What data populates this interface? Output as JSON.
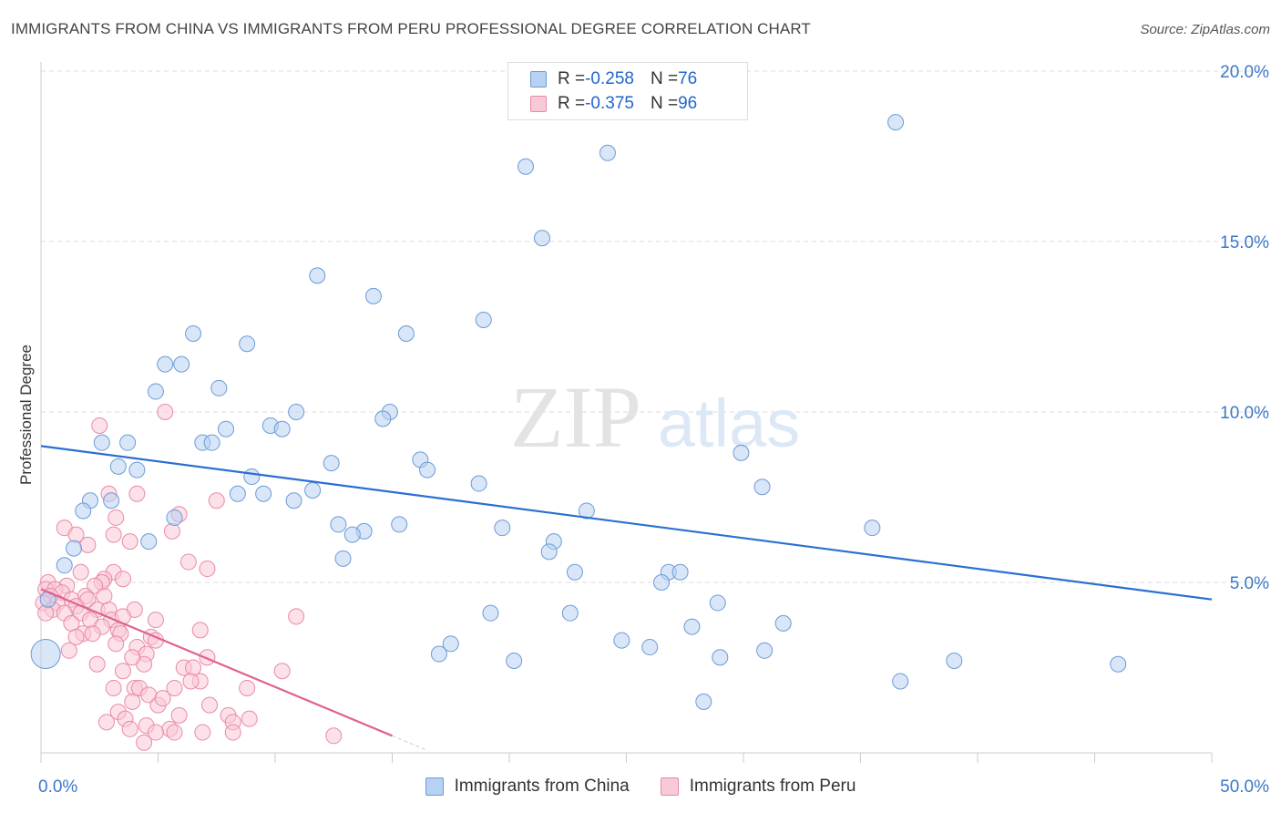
{
  "header": {
    "title": "IMMIGRANTS FROM CHINA VS IMMIGRANTS FROM PERU PROFESSIONAL DEGREE CORRELATION CHART",
    "source": "Source: ZipAtlas.com"
  },
  "watermark": {
    "zip": "ZIP",
    "atlas": "atlas"
  },
  "stats": [
    {
      "r_label": "R = ",
      "r_value": "-0.258",
      "n_label": "N = ",
      "n_value": "76"
    },
    {
      "r_label": "R = ",
      "r_value": "-0.375",
      "n_label": "N = ",
      "n_value": "96"
    }
  ],
  "legend": [
    {
      "label": "Immigrants from China"
    },
    {
      "label": "Immigrants from Peru"
    }
  ],
  "colors": {
    "china_fill": "#b8d1f3",
    "china_stroke": "#6b9bd8",
    "china_line": "#2a6fd1",
    "peru_fill": "#f9c9d6",
    "peru_stroke": "#e98aa6",
    "peru_line": "#e0628f",
    "tick_text": "#3b78c8"
  },
  "chart_data": {
    "type": "scatter",
    "title": "IMMIGRANTS FROM CHINA VS IMMIGRANTS FROM PERU PROFESSIONAL DEGREE CORRELATION CHART",
    "xlabel": "",
    "ylabel": "Professional Degree",
    "xlim": [
      0,
      50
    ],
    "ylim": [
      0,
      20
    ],
    "x_tick_labels": [
      "0.0%",
      "50.0%"
    ],
    "y_ticks": [
      5,
      10,
      15,
      20
    ],
    "y_tick_labels": [
      "5.0%",
      "10.0%",
      "15.0%",
      "20.0%"
    ],
    "grid": true,
    "legend_position": "bottom",
    "series": [
      {
        "name": "Immigrants from China",
        "r": -0.258,
        "n": 76,
        "trend": {
          "x": [
            0,
            50
          ],
          "y": [
            9.0,
            4.5
          ]
        },
        "points": [
          {
            "x": 36.5,
            "y": 18.5
          },
          {
            "x": 24.2,
            "y": 17.6
          },
          {
            "x": 20.7,
            "y": 17.2
          },
          {
            "x": 21.4,
            "y": 15.1
          },
          {
            "x": 11.8,
            "y": 14.0
          },
          {
            "x": 14.2,
            "y": 13.4
          },
          {
            "x": 15.6,
            "y": 12.3
          },
          {
            "x": 18.9,
            "y": 12.7
          },
          {
            "x": 6.5,
            "y": 12.3
          },
          {
            "x": 8.8,
            "y": 12.0
          },
          {
            "x": 5.3,
            "y": 11.4
          },
          {
            "x": 6.0,
            "y": 11.4
          },
          {
            "x": 4.9,
            "y": 10.6
          },
          {
            "x": 7.6,
            "y": 10.7
          },
          {
            "x": 10.9,
            "y": 10.0
          },
          {
            "x": 14.9,
            "y": 10.0
          },
          {
            "x": 14.6,
            "y": 9.8
          },
          {
            "x": 9.8,
            "y": 9.6
          },
          {
            "x": 10.3,
            "y": 9.5
          },
          {
            "x": 7.9,
            "y": 9.5
          },
          {
            "x": 2.6,
            "y": 9.1
          },
          {
            "x": 3.7,
            "y": 9.1
          },
          {
            "x": 6.9,
            "y": 9.1
          },
          {
            "x": 7.3,
            "y": 9.1
          },
          {
            "x": 12.4,
            "y": 8.5
          },
          {
            "x": 16.2,
            "y": 8.6
          },
          {
            "x": 16.5,
            "y": 8.3
          },
          {
            "x": 29.9,
            "y": 8.8
          },
          {
            "x": 3.3,
            "y": 8.4
          },
          {
            "x": 4.1,
            "y": 8.3
          },
          {
            "x": 9.0,
            "y": 8.1
          },
          {
            "x": 18.7,
            "y": 7.9
          },
          {
            "x": 30.8,
            "y": 7.8
          },
          {
            "x": 11.6,
            "y": 7.7
          },
          {
            "x": 8.4,
            "y": 7.6
          },
          {
            "x": 9.5,
            "y": 7.6
          },
          {
            "x": 2.1,
            "y": 7.4
          },
          {
            "x": 3.0,
            "y": 7.4
          },
          {
            "x": 10.8,
            "y": 7.4
          },
          {
            "x": 1.8,
            "y": 7.1
          },
          {
            "x": 23.3,
            "y": 7.1
          },
          {
            "x": 5.7,
            "y": 6.9
          },
          {
            "x": 12.7,
            "y": 6.7
          },
          {
            "x": 15.3,
            "y": 6.7
          },
          {
            "x": 19.7,
            "y": 6.6
          },
          {
            "x": 35.5,
            "y": 6.6
          },
          {
            "x": 13.8,
            "y": 6.5
          },
          {
            "x": 13.3,
            "y": 6.4
          },
          {
            "x": 4.6,
            "y": 6.2
          },
          {
            "x": 21.9,
            "y": 6.2
          },
          {
            "x": 1.4,
            "y": 6.0
          },
          {
            "x": 21.7,
            "y": 5.9
          },
          {
            "x": 12.9,
            "y": 5.7
          },
          {
            "x": 1.0,
            "y": 5.5
          },
          {
            "x": 22.8,
            "y": 5.3
          },
          {
            "x": 26.8,
            "y": 5.3
          },
          {
            "x": 27.3,
            "y": 5.3
          },
          {
            "x": 26.5,
            "y": 5.0
          },
          {
            "x": 28.9,
            "y": 4.4
          },
          {
            "x": 19.2,
            "y": 4.1
          },
          {
            "x": 22.6,
            "y": 4.1
          },
          {
            "x": 31.7,
            "y": 3.8
          },
          {
            "x": 27.8,
            "y": 3.7
          },
          {
            "x": 24.8,
            "y": 3.3
          },
          {
            "x": 26.0,
            "y": 3.1
          },
          {
            "x": 17.5,
            "y": 3.2
          },
          {
            "x": 30.9,
            "y": 3.0
          },
          {
            "x": 17.0,
            "y": 2.9
          },
          {
            "x": 20.2,
            "y": 2.7
          },
          {
            "x": 29.0,
            "y": 2.8
          },
          {
            "x": 39.0,
            "y": 2.7
          },
          {
            "x": 46.0,
            "y": 2.6
          },
          {
            "x": 36.7,
            "y": 2.1
          },
          {
            "x": 28.3,
            "y": 1.5
          },
          {
            "x": 0.2,
            "y": 2.9,
            "big": true
          },
          {
            "x": 0.3,
            "y": 4.5
          }
        ]
      },
      {
        "name": "Immigrants from Peru",
        "r": -0.375,
        "n": 96,
        "trend": {
          "x": [
            0,
            15
          ],
          "y": [
            4.8,
            0.5
          ]
        },
        "points": [
          {
            "x": 5.3,
            "y": 10.0
          },
          {
            "x": 2.5,
            "y": 9.6
          },
          {
            "x": 2.9,
            "y": 7.6
          },
          {
            "x": 4.1,
            "y": 7.6
          },
          {
            "x": 7.5,
            "y": 7.4
          },
          {
            "x": 3.2,
            "y": 6.9
          },
          {
            "x": 5.9,
            "y": 7.0
          },
          {
            "x": 1.0,
            "y": 6.6
          },
          {
            "x": 1.5,
            "y": 6.4
          },
          {
            "x": 3.1,
            "y": 6.4
          },
          {
            "x": 5.6,
            "y": 6.5
          },
          {
            "x": 3.8,
            "y": 6.2
          },
          {
            "x": 6.3,
            "y": 5.6
          },
          {
            "x": 7.1,
            "y": 5.4
          },
          {
            "x": 1.7,
            "y": 5.3
          },
          {
            "x": 3.1,
            "y": 5.3
          },
          {
            "x": 2.7,
            "y": 5.1
          },
          {
            "x": 3.5,
            "y": 5.1
          },
          {
            "x": 0.3,
            "y": 5.0
          },
          {
            "x": 2.6,
            "y": 5.0
          },
          {
            "x": 1.1,
            "y": 4.9
          },
          {
            "x": 2.3,
            "y": 4.9
          },
          {
            "x": 0.2,
            "y": 4.8
          },
          {
            "x": 0.6,
            "y": 4.8
          },
          {
            "x": 0.9,
            "y": 4.7
          },
          {
            "x": 1.9,
            "y": 4.6
          },
          {
            "x": 0.4,
            "y": 4.6
          },
          {
            "x": 1.3,
            "y": 4.5
          },
          {
            "x": 2.0,
            "y": 4.5
          },
          {
            "x": 0.1,
            "y": 4.4
          },
          {
            "x": 0.7,
            "y": 4.4
          },
          {
            "x": 1.5,
            "y": 4.3
          },
          {
            "x": 0.5,
            "y": 4.2
          },
          {
            "x": 2.4,
            "y": 4.2
          },
          {
            "x": 0.2,
            "y": 4.1
          },
          {
            "x": 1.0,
            "y": 4.1
          },
          {
            "x": 1.7,
            "y": 4.1
          },
          {
            "x": 2.9,
            "y": 4.2
          },
          {
            "x": 4.0,
            "y": 4.2
          },
          {
            "x": 10.9,
            "y": 4.0
          },
          {
            "x": 2.1,
            "y": 3.9
          },
          {
            "x": 3.0,
            "y": 3.9
          },
          {
            "x": 3.5,
            "y": 4.0
          },
          {
            "x": 4.9,
            "y": 3.9
          },
          {
            "x": 1.3,
            "y": 3.8
          },
          {
            "x": 2.6,
            "y": 3.7
          },
          {
            "x": 3.3,
            "y": 3.6
          },
          {
            "x": 6.8,
            "y": 3.6
          },
          {
            "x": 1.8,
            "y": 3.5
          },
          {
            "x": 3.4,
            "y": 3.5
          },
          {
            "x": 4.7,
            "y": 3.4
          },
          {
            "x": 1.5,
            "y": 3.4
          },
          {
            "x": 2.2,
            "y": 3.5
          },
          {
            "x": 3.2,
            "y": 3.2
          },
          {
            "x": 4.9,
            "y": 3.3
          },
          {
            "x": 4.1,
            "y": 3.1
          },
          {
            "x": 4.5,
            "y": 2.9
          },
          {
            "x": 7.1,
            "y": 2.8
          },
          {
            "x": 2.4,
            "y": 2.6
          },
          {
            "x": 4.4,
            "y": 2.6
          },
          {
            "x": 6.1,
            "y": 2.5
          },
          {
            "x": 6.5,
            "y": 2.5
          },
          {
            "x": 3.5,
            "y": 2.4
          },
          {
            "x": 10.3,
            "y": 2.4
          },
          {
            "x": 6.8,
            "y": 2.1
          },
          {
            "x": 3.1,
            "y": 1.9
          },
          {
            "x": 4.0,
            "y": 1.9
          },
          {
            "x": 4.2,
            "y": 1.9
          },
          {
            "x": 5.7,
            "y": 1.9
          },
          {
            "x": 8.8,
            "y": 1.9
          },
          {
            "x": 4.6,
            "y": 1.7
          },
          {
            "x": 3.9,
            "y": 1.5
          },
          {
            "x": 5.0,
            "y": 1.4
          },
          {
            "x": 3.3,
            "y": 1.2
          },
          {
            "x": 3.6,
            "y": 1.0
          },
          {
            "x": 5.9,
            "y": 1.1
          },
          {
            "x": 8.0,
            "y": 1.1
          },
          {
            "x": 8.2,
            "y": 0.9
          },
          {
            "x": 8.9,
            "y": 1.0
          },
          {
            "x": 2.8,
            "y": 0.9
          },
          {
            "x": 4.5,
            "y": 0.8
          },
          {
            "x": 5.5,
            "y": 0.7
          },
          {
            "x": 5.7,
            "y": 0.6
          },
          {
            "x": 3.8,
            "y": 0.7
          },
          {
            "x": 4.9,
            "y": 0.6
          },
          {
            "x": 6.9,
            "y": 0.6
          },
          {
            "x": 8.2,
            "y": 0.6
          },
          {
            "x": 12.5,
            "y": 0.5
          },
          {
            "x": 4.4,
            "y": 0.3
          },
          {
            "x": 6.4,
            "y": 2.1
          },
          {
            "x": 7.2,
            "y": 1.4
          },
          {
            "x": 2.0,
            "y": 6.1
          },
          {
            "x": 1.2,
            "y": 3.0
          },
          {
            "x": 3.9,
            "y": 2.8
          },
          {
            "x": 5.2,
            "y": 1.6
          },
          {
            "x": 2.7,
            "y": 4.6
          }
        ]
      }
    ]
  }
}
